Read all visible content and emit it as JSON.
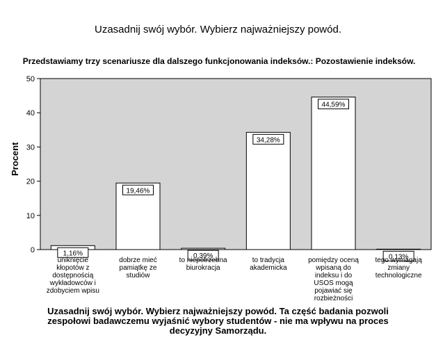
{
  "page": {
    "title": "Uzasadnij swój wybór. Wybierz najważniejszy powód.",
    "footer": "Uzasadnij swój wybór. Wybierz najważniejszy powód. Ta część badania pozwoli zespołowi badawczemu wyjaśnić wybory studentów - nie ma wpływu na proces decyzyjny Samorządu."
  },
  "chart_data": {
    "type": "bar",
    "title": "Przedstawiamy trzy scenariusze dla dalszego funkcjonowania indeksów.: Pozostawienie indeksów.",
    "ylabel": "Procent",
    "xlabel": "",
    "ylim": [
      0,
      50
    ],
    "yticks": [
      0,
      10,
      20,
      30,
      40,
      50
    ],
    "categories": [
      "uniknięcie kłopotów z dostępnością wykładowców i zdobyciem wpisu",
      "dobrze mieć pamiątkę ze studiów",
      "to niepotrzebna biurokracja",
      "to tradycja akademicka",
      "pomiędzy oceną wpisaną do indeksu i do USOS mogą pojawiać się rozbieżności",
      "tego wymagają zmiany technologiczne"
    ],
    "values": [
      1.16,
      19.46,
      0.39,
      34.28,
      44.59,
      0.13
    ],
    "data_labels": [
      "1,16%",
      "19,46%",
      "0,39%",
      "34,28%",
      "44,59%",
      "0,13%"
    ],
    "plot_background": "#d4d4d4",
    "bar_color": "#ffffff",
    "grid": false
  }
}
